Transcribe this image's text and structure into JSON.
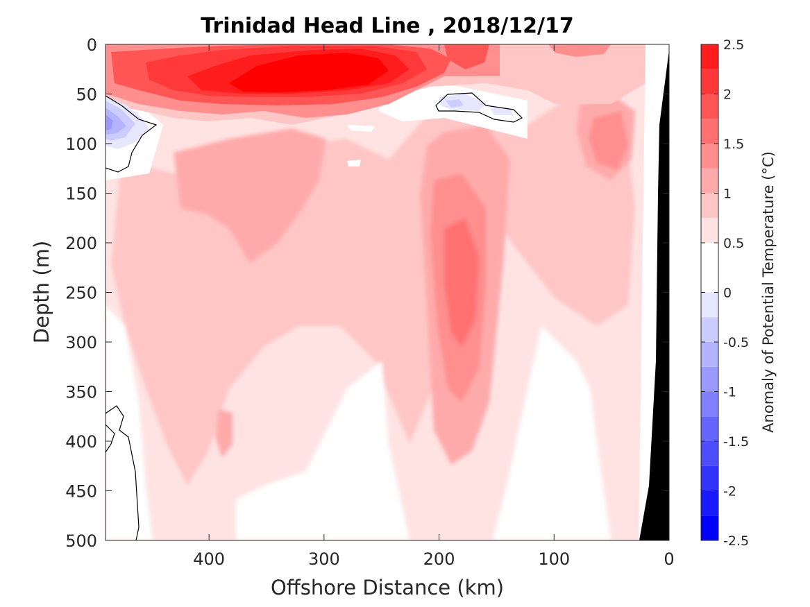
{
  "chart_data": {
    "type": "heatmap",
    "title": "Trinidad Head Line , 2018/12/17",
    "xlabel": "Offshore Distance (km)",
    "ylabel": "Depth (m)",
    "xlim": [
      490,
      0
    ],
    "ylim": [
      0,
      500
    ],
    "x_reversed": true,
    "y_reversed": true,
    "xticks": [
      "400",
      "300",
      "200",
      "100",
      "0"
    ],
    "xtick_values": [
      400,
      300,
      200,
      100,
      0
    ],
    "yticks": [
      "0",
      "50",
      "100",
      "150",
      "200",
      "250",
      "300",
      "350",
      "400",
      "450",
      "500"
    ],
    "ytick_values": [
      0,
      50,
      100,
      150,
      200,
      250,
      300,
      350,
      400,
      450,
      500
    ],
    "colorbar": {
      "label": "Anomaly of Potential Temperature (°C)",
      "ticks": [
        "2.5",
        "2",
        "1.5",
        "1",
        "0.5",
        "0",
        "-0.5",
        "-1",
        "-1.5",
        "-2",
        "-2.5"
      ],
      "tick_values": [
        2.5,
        2,
        1.5,
        1,
        0.5,
        0,
        -0.5,
        -1,
        -1.5,
        -2,
        -2.5
      ],
      "levels": [
        -2.5,
        -2.25,
        -2,
        -1.75,
        -1.5,
        -1.25,
        -1,
        -0.75,
        -0.5,
        -0.25,
        0,
        0.25,
        0.5,
        0.75,
        1,
        1.25,
        1.5,
        1.75,
        2,
        2.25,
        2.5
      ],
      "colors": [
        "#0000ff",
        "#1a1aff",
        "#3333ff",
        "#4d4dff",
        "#6666ff",
        "#8080ff",
        "#9999ff",
        "#b3b3ff",
        "#ccccff",
        "#e6e6ff",
        "#ffffff",
        "#ffffff",
        "#ffe3e3",
        "#ffc6c6",
        "#ffaaaa",
        "#ff8e8e",
        "#ff7171",
        "#ff5555",
        "#ff3939",
        "#ff1c1c",
        "#ff0000"
      ]
    },
    "bottom_color": "#000000",
    "features": [
      {
        "name": "surface warm layer",
        "x_range": [
          490,
          140
        ],
        "depth_range": [
          0,
          65
        ],
        "anomaly_max": 2.5
      },
      {
        "name": "subsurface warm core",
        "x_center": 190,
        "depth_range": [
          130,
          450
        ],
        "anomaly_max": 1.75
      },
      {
        "name": "nearshore warm eddy",
        "x_center": 50,
        "depth_range": [
          60,
          160
        ],
        "anomaly_max": 1.5
      },
      {
        "name": "offshore cold lens",
        "x_center": 485,
        "depth_range": [
          55,
          120
        ],
        "anomaly_min": -1.25
      },
      {
        "name": "shallow cold patch",
        "x_center": 175,
        "depth_range": [
          50,
          75
        ],
        "anomaly_min": -0.5
      }
    ]
  }
}
